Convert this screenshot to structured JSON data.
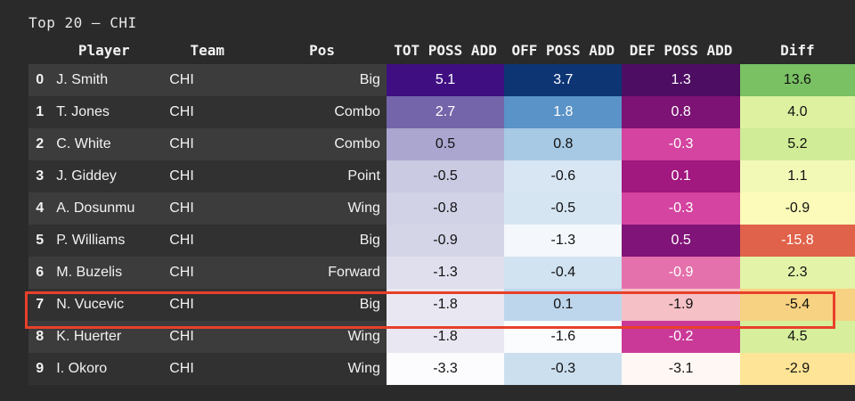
{
  "title": "Top 20 — CHI",
  "colors": {
    "background": "#2a2a2a",
    "highlight_border": "#e8402a"
  },
  "highlighted_row": 7,
  "chart_data": {
    "type": "table",
    "title": "Top 20 — CHI",
    "columns": [
      "",
      "Player",
      "Team",
      "Pos",
      "TOT POSS ADD",
      "OFF POSS ADD",
      "DEF POSS ADD",
      "Diff"
    ],
    "rows": [
      {
        "idx": "0",
        "player": "J. Smith",
        "team": "CHI",
        "pos": "Big",
        "tot": "5.1",
        "off": "3.7",
        "def": "1.3",
        "diff": "13.6"
      },
      {
        "idx": "1",
        "player": "T. Jones",
        "team": "CHI",
        "pos": "Combo",
        "tot": "2.7",
        "off": "1.8",
        "def": "0.8",
        "diff": "4.0"
      },
      {
        "idx": "2",
        "player": "C. White",
        "team": "CHI",
        "pos": "Combo",
        "tot": "0.5",
        "off": "0.8",
        "def": "-0.3",
        "diff": "5.2"
      },
      {
        "idx": "3",
        "player": "J. Giddey",
        "team": "CHI",
        "pos": "Point",
        "tot": "-0.5",
        "off": "-0.6",
        "def": "0.1",
        "diff": "1.1"
      },
      {
        "idx": "4",
        "player": "A. Dosunmu",
        "team": "CHI",
        "pos": "Wing",
        "tot": "-0.8",
        "off": "-0.5",
        "def": "-0.3",
        "diff": "-0.9"
      },
      {
        "idx": "5",
        "player": "P. Williams",
        "team": "CHI",
        "pos": "Big",
        "tot": "-0.9",
        "off": "-1.3",
        "def": "0.5",
        "diff": "-15.8"
      },
      {
        "idx": "6",
        "player": "M. Buzelis",
        "team": "CHI",
        "pos": "Forward",
        "tot": "-1.3",
        "off": "-0.4",
        "def": "-0.9",
        "diff": "2.3"
      },
      {
        "idx": "7",
        "player": "N. Vucevic",
        "team": "CHI",
        "pos": "Big",
        "tot": "-1.8",
        "off": "0.1",
        "def": "-1.9",
        "diff": "-5.4"
      },
      {
        "idx": "8",
        "player": "K. Huerter",
        "team": "CHI",
        "pos": "Wing",
        "tot": "-1.8",
        "off": "-1.6",
        "def": "-0.2",
        "diff": "4.5"
      },
      {
        "idx": "9",
        "player": "I. Okoro",
        "team": "CHI",
        "pos": "Wing",
        "tot": "-3.3",
        "off": "-0.3",
        "def": "-3.1",
        "diff": "-2.9"
      }
    ],
    "cell_colors": {
      "tot": [
        "#3f0f82",
        "#7465aa",
        "#aaa6cf",
        "#cbcae3",
        "#d2d2e7",
        "#d5d5e8",
        "#e0dfee",
        "#e9e8f2",
        "#e9e8f2",
        "#fcfbfd"
      ],
      "off": [
        "#0d3574",
        "#5a93c7",
        "#a7c9e3",
        "#d8e6f3",
        "#d6e5f2",
        "#f4f8fc",
        "#d1e2f1",
        "#bdd6ec",
        "#fbfcfe",
        "#ccdfef"
      ],
      "def": [
        "#4d0d63",
        "#7d1375",
        "#d444a0",
        "#a1187e",
        "#d444a0",
        "#811478",
        "#e571ac",
        "#f5c1c6",
        "#cb3998",
        "#fff7f3"
      ],
      "diff": [
        "#79c163",
        "#def1a1",
        "#d0ec96",
        "#f2f9b7",
        "#fcfbb9",
        "#e0624a",
        "#e3f3a8",
        "#f7d282",
        "#d7ef9c",
        "#fde496"
      ]
    },
    "text_colors": {
      "tot": [
        "#ffffff",
        "#ffffff",
        "#111111",
        "#111111",
        "#111111",
        "#111111",
        "#111111",
        "#111111",
        "#111111",
        "#111111"
      ],
      "off": [
        "#ffffff",
        "#ffffff",
        "#111111",
        "#111111",
        "#111111",
        "#111111",
        "#111111",
        "#111111",
        "#111111",
        "#111111"
      ],
      "def": [
        "#ffffff",
        "#ffffff",
        "#ffffff",
        "#ffffff",
        "#ffffff",
        "#ffffff",
        "#ffffff",
        "#111111",
        "#ffffff",
        "#111111"
      ],
      "diff": [
        "#111111",
        "#111111",
        "#111111",
        "#111111",
        "#111111",
        "#ffffff",
        "#111111",
        "#111111",
        "#111111",
        "#111111"
      ]
    }
  }
}
